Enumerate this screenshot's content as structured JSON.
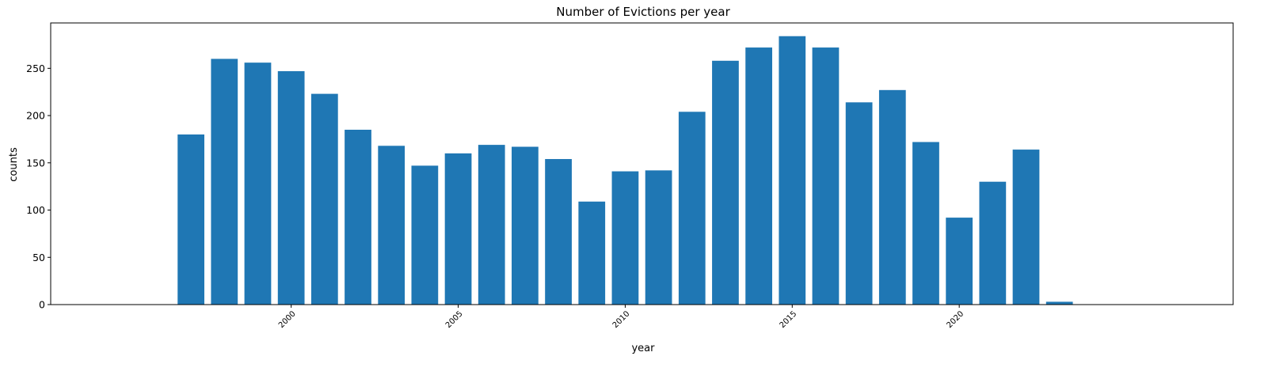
{
  "chart_data": {
    "type": "bar",
    "title": "Number of Evictions per year",
    "xlabel": "year",
    "ylabel": "counts",
    "color": "#1f77b4",
    "x": [
      1997,
      1998,
      1999,
      2000,
      2001,
      2002,
      2003,
      2004,
      2005,
      2006,
      2007,
      2008,
      2009,
      2010,
      2011,
      2012,
      2013,
      2014,
      2015,
      2016,
      2017,
      2018,
      2019,
      2020,
      2021,
      2022,
      2023
    ],
    "values": [
      180,
      260,
      256,
      247,
      223,
      185,
      168,
      147,
      160,
      169,
      167,
      154,
      109,
      141,
      142,
      204,
      258,
      272,
      284,
      272,
      214,
      227,
      172,
      92,
      130,
      164,
      3
    ],
    "xlim": [
      1992.8,
      2028.2
    ],
    "ylim": [
      0,
      298
    ],
    "xticks": [
      2000,
      2005,
      2010,
      2015,
      2020
    ],
    "yticks": [
      0,
      50,
      100,
      150,
      200,
      250
    ],
    "grid": false
  }
}
